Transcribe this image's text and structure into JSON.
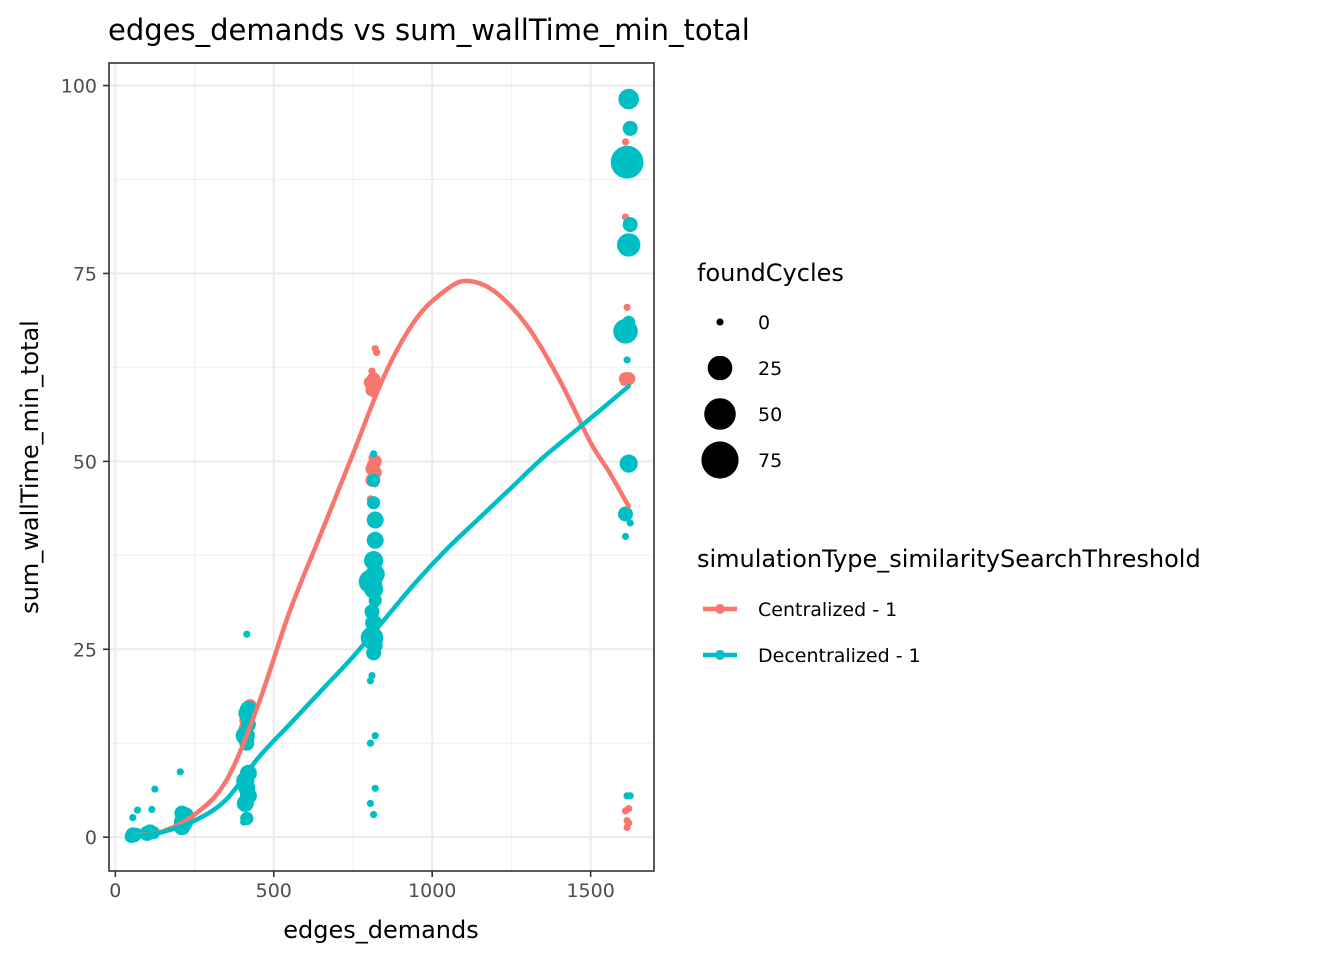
{
  "chart_data": {
    "type": "scatter",
    "title": "edges_demands  vs  sum_wallTime_min_total",
    "xlabel": "edges_demands",
    "ylabel": "sum_wallTime_min_total",
    "xlim": [
      -20,
      1700
    ],
    "ylim": [
      -4.5,
      103
    ],
    "x_ticks": [
      {
        "value": 0,
        "label": "0"
      },
      {
        "value": 500,
        "label": "500"
      },
      {
        "value": 1000,
        "label": "1000"
      },
      {
        "value": 1500,
        "label": "1500"
      }
    ],
    "y_ticks": [
      {
        "value": 0,
        "label": "0"
      },
      {
        "value": 25,
        "label": "25"
      },
      {
        "value": 50,
        "label": "50"
      },
      {
        "value": 75,
        "label": "75"
      },
      {
        "value": 100,
        "label": "100"
      }
    ],
    "grid": true,
    "size_legend": {
      "title": "foundCycles",
      "entries": [
        {
          "value": 0,
          "label": "0"
        },
        {
          "value": 25,
          "label": "25"
        },
        {
          "value": 50,
          "label": "50"
        },
        {
          "value": 75,
          "label": "75"
        }
      ]
    },
    "color_legend": {
      "title": "simulationType_similaritySearchThreshold",
      "placement": "right"
    },
    "series": [
      {
        "name": "Centralized - 1",
        "color": "#F8766D",
        "points": [
          {
            "x": 55,
            "y": 0.3,
            "size": 0
          },
          {
            "x": 65,
            "y": 0.6,
            "size": 0
          },
          {
            "x": 105,
            "y": 0.8,
            "size": 0
          },
          {
            "x": 120,
            "y": 0.5,
            "size": 0
          },
          {
            "x": 205,
            "y": 2.2,
            "size": 0
          },
          {
            "x": 215,
            "y": 1.8,
            "size": 0
          },
          {
            "x": 225,
            "y": 2.8,
            "size": 0
          },
          {
            "x": 415,
            "y": 15.5,
            "size": 5
          },
          {
            "x": 420,
            "y": 16.5,
            "size": 5
          },
          {
            "x": 425,
            "y": 17.5,
            "size": 3
          },
          {
            "x": 410,
            "y": 14.5,
            "size": 3
          },
          {
            "x": 820,
            "y": 65.0,
            "size": 0
          },
          {
            "x": 825,
            "y": 64.5,
            "size": 0
          },
          {
            "x": 810,
            "y": 62.0,
            "size": 0
          },
          {
            "x": 815,
            "y": 61.0,
            "size": 3
          },
          {
            "x": 805,
            "y": 60.5,
            "size": 3
          },
          {
            "x": 820,
            "y": 60.0,
            "size": 3
          },
          {
            "x": 810,
            "y": 59.5,
            "size": 3
          },
          {
            "x": 815,
            "y": 59.0,
            "size": 0
          },
          {
            "x": 810,
            "y": 50.5,
            "size": 0
          },
          {
            "x": 820,
            "y": 50.0,
            "size": 3
          },
          {
            "x": 815,
            "y": 49.5,
            "size": 3
          },
          {
            "x": 810,
            "y": 49.0,
            "size": 3
          },
          {
            "x": 820,
            "y": 48.5,
            "size": 3
          },
          {
            "x": 815,
            "y": 48.0,
            "size": 0
          },
          {
            "x": 810,
            "y": 47.5,
            "size": 3
          },
          {
            "x": 820,
            "y": 47.0,
            "size": 0
          },
          {
            "x": 805,
            "y": 45.0,
            "size": 0
          },
          {
            "x": 1610,
            "y": 92.5,
            "size": 0
          },
          {
            "x": 1610,
            "y": 82.5,
            "size": 0
          },
          {
            "x": 1615,
            "y": 70.5,
            "size": 0
          },
          {
            "x": 1610,
            "y": 61.0,
            "size": 3
          },
          {
            "x": 1620,
            "y": 61.0,
            "size": 3
          },
          {
            "x": 1605,
            "y": 60.5,
            "size": 0
          },
          {
            "x": 1620,
            "y": 60.5,
            "size": 0
          },
          {
            "x": 1610,
            "y": 3.5,
            "size": 0
          },
          {
            "x": 1620,
            "y": 3.8,
            "size": 0
          },
          {
            "x": 1615,
            "y": 2.2,
            "size": 0
          },
          {
            "x": 1620,
            "y": 1.9,
            "size": 0
          },
          {
            "x": 1615,
            "y": 1.3,
            "size": 0
          }
        ],
        "smooth": [
          {
            "x": 60,
            "y": 0.2
          },
          {
            "x": 150,
            "y": 0.8
          },
          {
            "x": 250,
            "y": 3.0
          },
          {
            "x": 350,
            "y": 7.5
          },
          {
            "x": 450,
            "y": 17.5
          },
          {
            "x": 550,
            "y": 30.0
          },
          {
            "x": 650,
            "y": 40.5
          },
          {
            "x": 750,
            "y": 51.0
          },
          {
            "x": 850,
            "y": 61.5
          },
          {
            "x": 950,
            "y": 69.0
          },
          {
            "x": 1050,
            "y": 73.0
          },
          {
            "x": 1115,
            "y": 74.0
          },
          {
            "x": 1200,
            "y": 72.5
          },
          {
            "x": 1300,
            "y": 68.0
          },
          {
            "x": 1400,
            "y": 61.0
          },
          {
            "x": 1500,
            "y": 52.5
          },
          {
            "x": 1560,
            "y": 48.5
          },
          {
            "x": 1620,
            "y": 44.0
          }
        ]
      },
      {
        "name": "Decentralized - 1",
        "color": "#00BFC4",
        "points": [
          {
            "x": 50,
            "y": 0.1,
            "size": 3
          },
          {
            "x": 55,
            "y": 0.3,
            "size": 5
          },
          {
            "x": 60,
            "y": 0.2,
            "size": 3
          },
          {
            "x": 65,
            "y": 0.4,
            "size": 3
          },
          {
            "x": 55,
            "y": 2.6,
            "size": 0
          },
          {
            "x": 70,
            "y": 3.6,
            "size": 0
          },
          {
            "x": 100,
            "y": 0.5,
            "size": 5
          },
          {
            "x": 110,
            "y": 0.7,
            "size": 5
          },
          {
            "x": 115,
            "y": 3.7,
            "size": 0
          },
          {
            "x": 120,
            "y": 0.6,
            "size": 3
          },
          {
            "x": 125,
            "y": 6.4,
            "size": 0
          },
          {
            "x": 205,
            "y": 8.7,
            "size": 0
          },
          {
            "x": 210,
            "y": 1.4,
            "size": 8
          },
          {
            "x": 215,
            "y": 2.0,
            "size": 12
          },
          {
            "x": 220,
            "y": 2.8,
            "size": 10
          },
          {
            "x": 210,
            "y": 3.2,
            "size": 5
          },
          {
            "x": 405,
            "y": 2.0,
            "size": 0
          },
          {
            "x": 415,
            "y": 2.5,
            "size": 3
          },
          {
            "x": 410,
            "y": 4.5,
            "size": 8
          },
          {
            "x": 420,
            "y": 5.5,
            "size": 8
          },
          {
            "x": 415,
            "y": 6.5,
            "size": 8
          },
          {
            "x": 410,
            "y": 7.5,
            "size": 10
          },
          {
            "x": 420,
            "y": 8.5,
            "size": 8
          },
          {
            "x": 415,
            "y": 12.5,
            "size": 5
          },
          {
            "x": 410,
            "y": 13.5,
            "size": 12
          },
          {
            "x": 420,
            "y": 15.0,
            "size": 5
          },
          {
            "x": 415,
            "y": 16.5,
            "size": 8
          },
          {
            "x": 420,
            "y": 17.0,
            "size": 8
          },
          {
            "x": 415,
            "y": 27.0,
            "size": 0
          },
          {
            "x": 805,
            "y": 4.5,
            "size": 0
          },
          {
            "x": 815,
            "y": 3.0,
            "size": 0
          },
          {
            "x": 820,
            "y": 6.5,
            "size": 0
          },
          {
            "x": 805,
            "y": 12.5,
            "size": 0
          },
          {
            "x": 820,
            "y": 13.5,
            "size": 0
          },
          {
            "x": 805,
            "y": 20.8,
            "size": 0
          },
          {
            "x": 810,
            "y": 21.5,
            "size": 0
          },
          {
            "x": 815,
            "y": 24.5,
            "size": 5
          },
          {
            "x": 820,
            "y": 25.5,
            "size": 5
          },
          {
            "x": 810,
            "y": 26.5,
            "size": 20
          },
          {
            "x": 815,
            "y": 28.5,
            "size": 8
          },
          {
            "x": 810,
            "y": 30.0,
            "size": 5
          },
          {
            "x": 820,
            "y": 31.5,
            "size": 3
          },
          {
            "x": 815,
            "y": 33.0,
            "size": 12
          },
          {
            "x": 805,
            "y": 34.0,
            "size": 22
          },
          {
            "x": 820,
            "y": 35.0,
            "size": 12
          },
          {
            "x": 815,
            "y": 36.8,
            "size": 12
          },
          {
            "x": 820,
            "y": 39.5,
            "size": 8
          },
          {
            "x": 820,
            "y": 42.2,
            "size": 8
          },
          {
            "x": 815,
            "y": 44.5,
            "size": 3
          },
          {
            "x": 815,
            "y": 47.5,
            "size": 3
          },
          {
            "x": 815,
            "y": 51.0,
            "size": 0
          },
          {
            "x": 1620,
            "y": 98.2,
            "size": 15
          },
          {
            "x": 1625,
            "y": 94.3,
            "size": 5
          },
          {
            "x": 1615,
            "y": 89.8,
            "size": 55
          },
          {
            "x": 1625,
            "y": 81.5,
            "size": 5
          },
          {
            "x": 1620,
            "y": 78.8,
            "size": 22
          },
          {
            "x": 1620,
            "y": 68.5,
            "size": 3
          },
          {
            "x": 1610,
            "y": 67.3,
            "size": 25
          },
          {
            "x": 1615,
            "y": 63.5,
            "size": 0
          },
          {
            "x": 1620,
            "y": 49.7,
            "size": 10
          },
          {
            "x": 1610,
            "y": 43.0,
            "size": 5
          },
          {
            "x": 1625,
            "y": 41.8,
            "size": 0
          },
          {
            "x": 1610,
            "y": 40.0,
            "size": 0
          },
          {
            "x": 1615,
            "y": 5.5,
            "size": 0
          },
          {
            "x": 1625,
            "y": 5.5,
            "size": 0
          }
        ],
        "smooth": [
          {
            "x": 60,
            "y": 0.1
          },
          {
            "x": 150,
            "y": 0.7
          },
          {
            "x": 250,
            "y": 2.2
          },
          {
            "x": 350,
            "y": 5.0
          },
          {
            "x": 450,
            "y": 10.5
          },
          {
            "x": 550,
            "y": 15.0
          },
          {
            "x": 650,
            "y": 19.5
          },
          {
            "x": 750,
            "y": 24.0
          },
          {
            "x": 850,
            "y": 29.0
          },
          {
            "x": 950,
            "y": 34.0
          },
          {
            "x": 1050,
            "y": 38.5
          },
          {
            "x": 1150,
            "y": 42.5
          },
          {
            "x": 1250,
            "y": 46.5
          },
          {
            "x": 1350,
            "y": 50.5
          },
          {
            "x": 1450,
            "y": 54.0
          },
          {
            "x": 1550,
            "y": 57.5
          },
          {
            "x": 1620,
            "y": 60.0
          }
        ]
      }
    ]
  }
}
